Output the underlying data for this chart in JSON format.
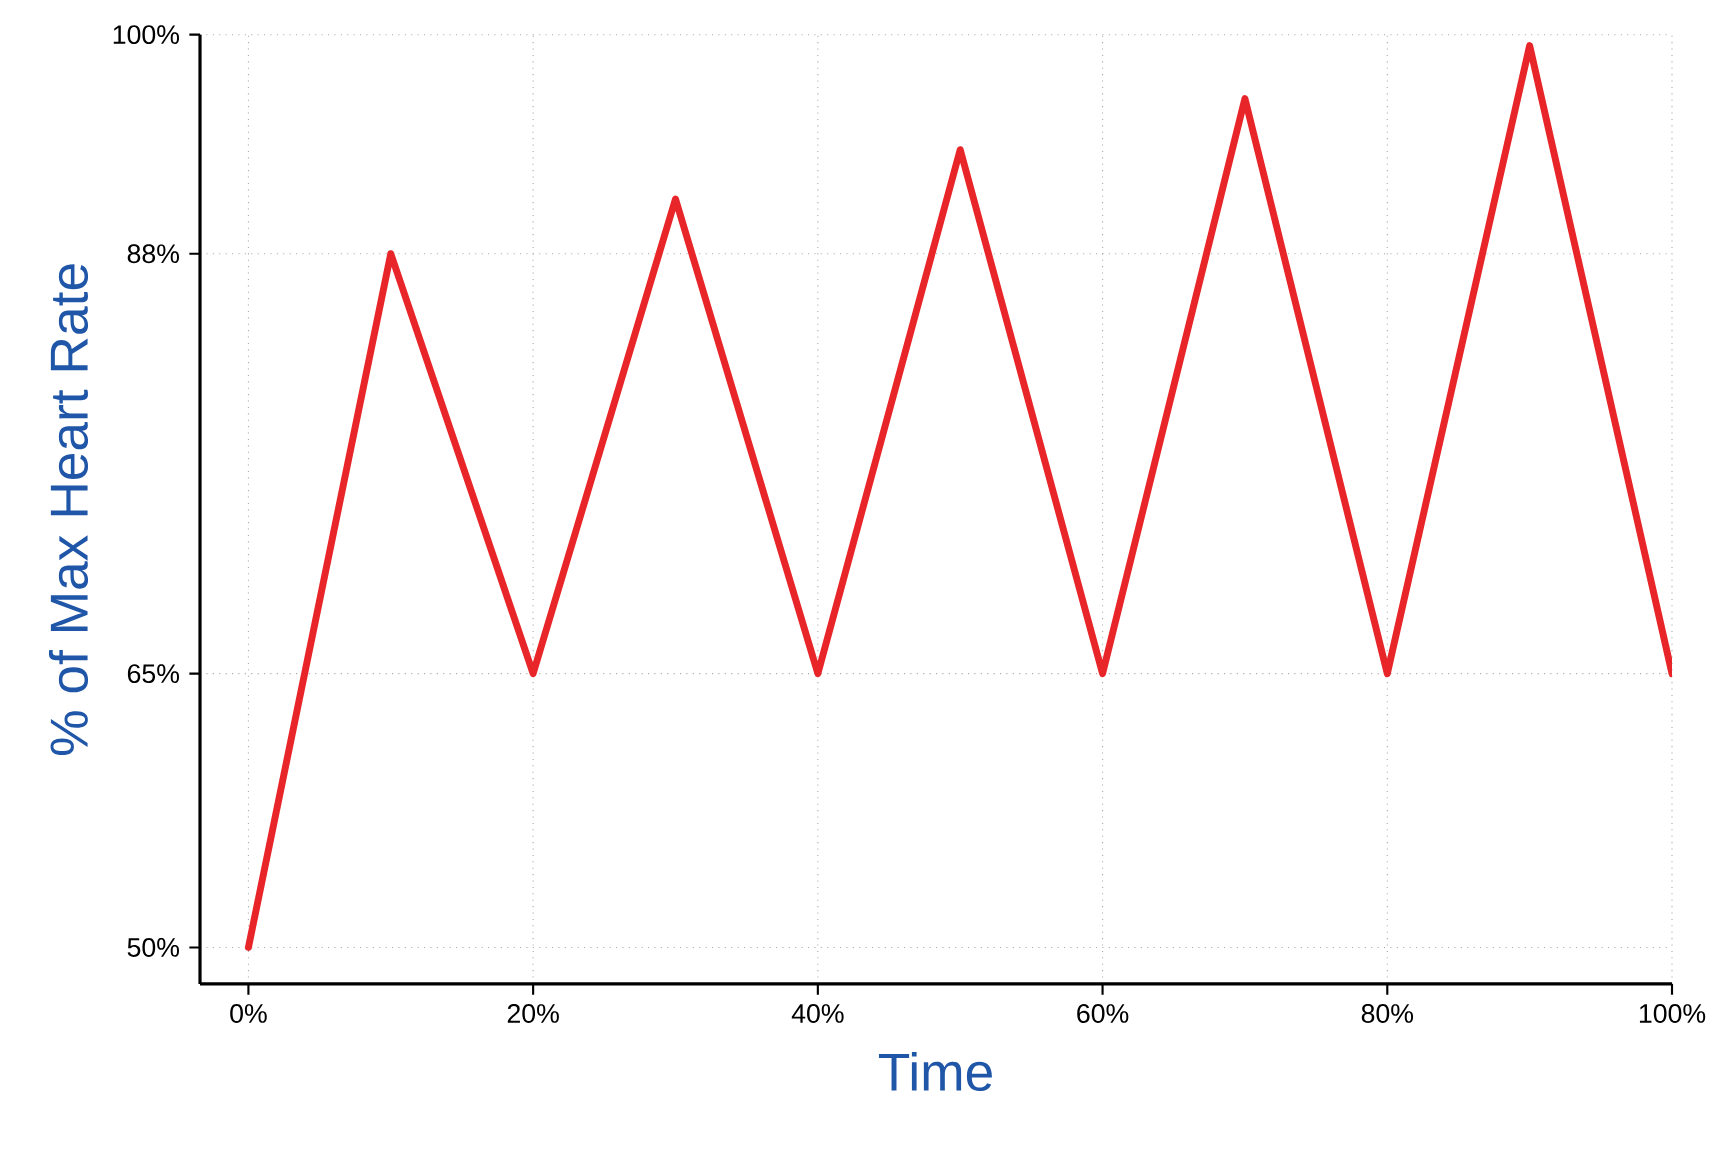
{
  "chart_data": {
    "type": "line",
    "xlabel": "Time",
    "ylabel": "% of Max Heart Rate",
    "x": [
      0,
      10,
      20,
      30,
      40,
      50,
      60,
      70,
      80,
      90,
      100
    ],
    "series": [
      {
        "color": "#e8262a",
        "values": [
          50,
          88,
          65,
          91,
          65,
          93.7,
          65,
          96.5,
          65,
          99.4,
          65
        ]
      }
    ],
    "xlim": [
      -3.4,
      100
    ],
    "ylim": [
      48,
      100
    ],
    "xticks": [
      {
        "value": 0,
        "label": "0%"
      },
      {
        "value": 20,
        "label": "20%"
      },
      {
        "value": 40,
        "label": "40%"
      },
      {
        "value": 60,
        "label": "60%"
      },
      {
        "value": 80,
        "label": "80%"
      },
      {
        "value": 100,
        "label": "100%"
      }
    ],
    "yticks": [
      {
        "value": 50,
        "label": "50%"
      },
      {
        "value": 65,
        "label": "65%"
      },
      {
        "value": 88,
        "label": "88%"
      },
      {
        "value": 100,
        "label": "100%"
      }
    ],
    "grid": true,
    "line_style": "solid"
  }
}
